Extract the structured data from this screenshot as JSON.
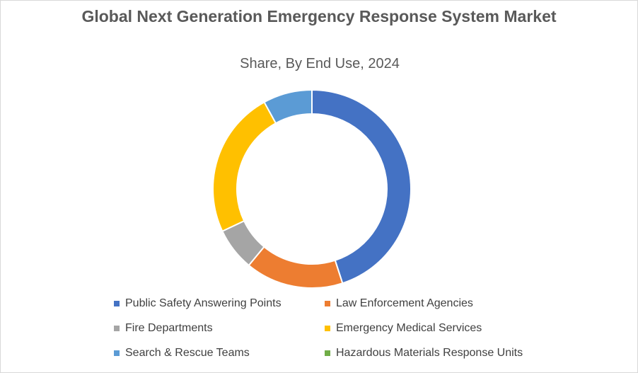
{
  "chart_data": {
    "type": "pie",
    "variant": "donut",
    "title": "Global Next Generation Emergency Response System Market",
    "subtitle": "Share, By End Use, 2024",
    "categories": [
      "Public Safety Answering Points",
      "Law Enforcement Agencies",
      "Fire Departments",
      "Emergency Medical Services",
      "Search & Rescue Teams",
      "Hazardous Materials Response Units"
    ],
    "values": [
      45,
      16,
      7,
      24,
      8,
      0
    ],
    "colors": [
      "#4472C4",
      "#ED7D31",
      "#A5A5A5",
      "#FFC000",
      "#5B9BD5",
      "#70AD47"
    ],
    "legend_position": "bottom"
  }
}
